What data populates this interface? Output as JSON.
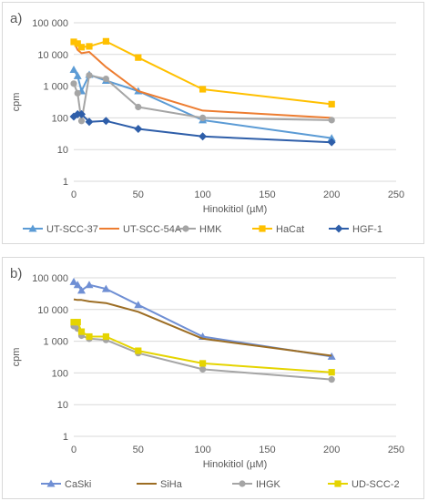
{
  "chart_data": [
    {
      "type": "line",
      "panel_label": "a)",
      "xlabel": "Hinokitiol (µM)",
      "ylabel": "cpm",
      "x_ticks": [
        "0",
        "50",
        "100",
        "150",
        "200",
        "250"
      ],
      "y_ticks": [
        "1",
        "10",
        "100",
        "1 000",
        "10 000",
        "100 000"
      ],
      "xlim": [
        0,
        250
      ],
      "ylim": [
        1,
        100000
      ],
      "y_scale": "log",
      "grid": true,
      "legend_position": "bottom",
      "series": [
        {
          "name": "UT-SCC-37",
          "color": "#5b9bd5",
          "marker": "triangle",
          "x": [
            0,
            3,
            6,
            12,
            25,
            50,
            100,
            200
          ],
          "y": [
            3300,
            2100,
            700,
            2300,
            1500,
            700,
            85,
            23
          ]
        },
        {
          "name": "UT-SCC-54A",
          "color": "#ed7d31",
          "marker": "none",
          "x": [
            0,
            3,
            6,
            12,
            25,
            50,
            100,
            200
          ],
          "y": [
            25000,
            14000,
            11000,
            12000,
            4000,
            700,
            170,
            100
          ]
        },
        {
          "name": "HMK",
          "color": "#a5a5a5",
          "marker": "circle",
          "x": [
            0,
            3,
            6,
            12,
            25,
            50,
            100,
            200
          ],
          "y": [
            1200,
            600,
            80,
            2200,
            1700,
            220,
            100,
            85
          ]
        },
        {
          "name": "HaCat",
          "color": "#ffc000",
          "marker": "square",
          "x": [
            0,
            3,
            6,
            12,
            25,
            50,
            100,
            200
          ],
          "y": [
            25000,
            22000,
            17000,
            18000,
            26000,
            8000,
            800,
            270
          ]
        },
        {
          "name": "HGF-1",
          "color": "#2e5ea9",
          "marker": "diamond",
          "x": [
            0,
            3,
            6,
            12,
            25,
            50,
            100,
            200
          ],
          "y": [
            110,
            130,
            130,
            75,
            80,
            45,
            26,
            17
          ]
        }
      ]
    },
    {
      "type": "line",
      "panel_label": "b)",
      "xlabel": "Hinokitiol (µM)",
      "ylabel": "cpm",
      "x_ticks": [
        "0",
        "50",
        "100",
        "150",
        "200",
        "250"
      ],
      "y_ticks": [
        "1",
        "10",
        "100",
        "1 000",
        "10 000",
        "100 000"
      ],
      "xlim": [
        0,
        250
      ],
      "ylim": [
        1,
        100000
      ],
      "y_scale": "log",
      "grid": true,
      "legend_position": "bottom",
      "series": [
        {
          "name": "CaSki",
          "color": "#6f8fd4",
          "marker": "triangle",
          "x": [
            0,
            3,
            6,
            12,
            25,
            50,
            100,
            200
          ],
          "y": [
            75000,
            60000,
            40000,
            60000,
            45000,
            14000,
            1400,
            330
          ]
        },
        {
          "name": "SiHa",
          "color": "#9c6d23",
          "marker": "none",
          "x": [
            0,
            3,
            6,
            12,
            25,
            50,
            100,
            200
          ],
          "y": [
            21000,
            20000,
            20000,
            18000,
            16000,
            8500,
            1200,
            350
          ]
        },
        {
          "name": "IHGK",
          "color": "#a5a5a5",
          "marker": "circle",
          "x": [
            0,
            3,
            6,
            12,
            25,
            50,
            100,
            200
          ],
          "y": [
            3000,
            2500,
            1500,
            1200,
            1100,
            420,
            130,
            62
          ]
        },
        {
          "name": "UD-SCC-2",
          "color": "#e5d400",
          "marker": "square",
          "x": [
            0,
            3,
            6,
            12,
            25,
            50,
            100,
            200
          ],
          "y": [
            4000,
            4000,
            2000,
            1400,
            1400,
            500,
            200,
            105
          ]
        }
      ]
    }
  ]
}
